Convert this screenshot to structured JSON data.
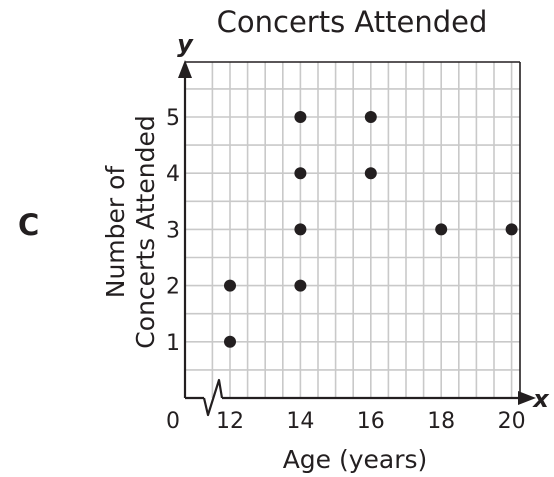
{
  "panel_label": "C",
  "chart_data": {
    "type": "scatter",
    "title": "Concerts Attended",
    "xlabel": "Age (years)",
    "ylabel": [
      "Number of",
      "Concerts Attended"
    ],
    "x_axis_symbol": "x",
    "y_axis_symbol": "y",
    "x_origin_label": "0",
    "x_axis_break": true,
    "x_ticks": [
      12,
      14,
      16,
      18,
      20
    ],
    "y_ticks": [
      1,
      2,
      3,
      4,
      5
    ],
    "xlim": [
      11,
      21.5
    ],
    "ylim": [
      0,
      5.7
    ],
    "grid": true,
    "points": [
      {
        "x": 12,
        "y": 1
      },
      {
        "x": 12,
        "y": 2
      },
      {
        "x": 14,
        "y": 2
      },
      {
        "x": 14,
        "y": 3
      },
      {
        "x": 14,
        "y": 4
      },
      {
        "x": 14,
        "y": 5
      },
      {
        "x": 16,
        "y": 4
      },
      {
        "x": 16,
        "y": 5
      },
      {
        "x": 18,
        "y": 3
      },
      {
        "x": 20,
        "y": 3
      }
    ]
  }
}
